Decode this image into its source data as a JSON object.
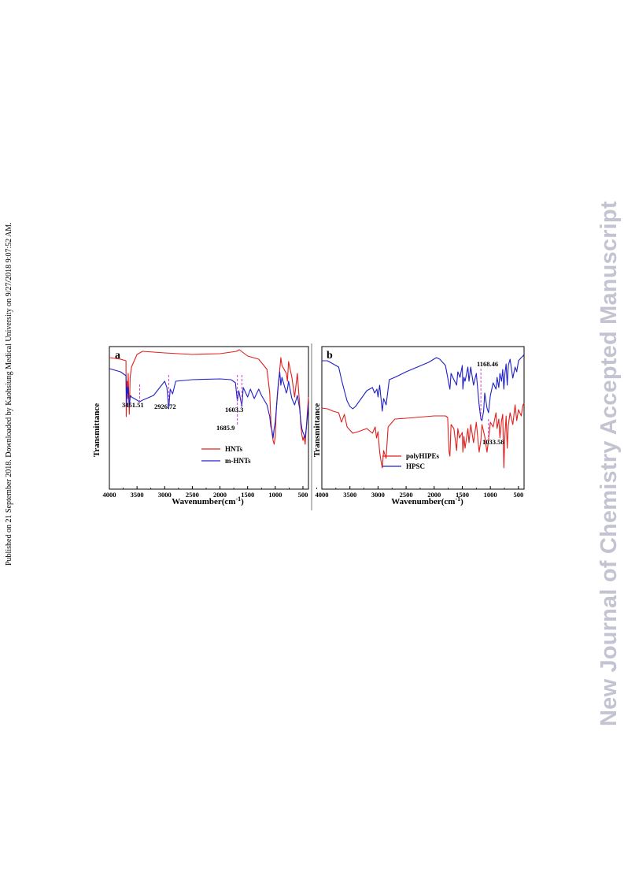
{
  "page": {
    "published_line": "Published on 21 September 2018. Downloaded by Kaohsiung Medical University on 9/27/2018 9:07:52 AM.",
    "watermark": "New Journal of Chemistry Accepted Manuscript",
    "watermark_color": "#c3c3d2"
  },
  "chart_data": [
    {
      "panel": "a",
      "type": "line",
      "xlabel": "Wavenumber(cm-1)",
      "ylabel": "Transmittance",
      "x_reversed": true,
      "xlim": [
        4000,
        400
      ],
      "xticks": [
        4000,
        3500,
        3000,
        2500,
        2000,
        1500,
        1000,
        500
      ],
      "legend_position": "bottom-center",
      "series": [
        {
          "name": "HNTs",
          "color": "#e0201e",
          "points": [
            [
              4000,
              10
            ],
            [
              3800,
              12
            ],
            [
              3700,
              14
            ],
            [
              3695,
              85
            ],
            [
              3680,
              40
            ],
            [
              3670,
              62
            ],
            [
              3660,
              30
            ],
            [
              3640,
              82
            ],
            [
              3625,
              35
            ],
            [
              3600,
              22
            ],
            [
              3500,
              6
            ],
            [
              3400,
              2
            ],
            [
              3000,
              4
            ],
            [
              2500,
              6
            ],
            [
              2000,
              5
            ],
            [
              1700,
              2
            ],
            [
              1650,
              0
            ],
            [
              1500,
              8
            ],
            [
              1300,
              12
            ],
            [
              1150,
              25
            ],
            [
              1100,
              55
            ],
            [
              1080,
              90
            ],
            [
              1060,
              105
            ],
            [
              1040,
              115
            ],
            [
              1020,
              120
            ],
            [
              1000,
              110
            ],
            [
              980,
              75
            ],
            [
              950,
              50
            ],
            [
              920,
              25
            ],
            [
              910,
              18
            ],
            [
              900,
              10
            ],
            [
              880,
              20
            ],
            [
              800,
              30
            ],
            [
              780,
              40
            ],
            [
              760,
              15
            ],
            [
              700,
              35
            ],
            [
              650,
              60
            ],
            [
              600,
              30
            ],
            [
              560,
              70
            ],
            [
              540,
              95
            ],
            [
              520,
              108
            ],
            [
              500,
              115
            ],
            [
              480,
              110
            ],
            [
              460,
              120
            ],
            [
              440,
              100
            ],
            [
              420,
              80
            ],
            [
              400,
              60
            ]
          ]
        },
        {
          "name": "m-HNTs",
          "color": "#2020c8",
          "points": [
            [
              4000,
              24
            ],
            [
              3800,
              28
            ],
            [
              3700,
              33
            ],
            [
              3690,
              70
            ],
            [
              3680,
              48
            ],
            [
              3670,
              55
            ],
            [
              3660,
              47
            ],
            [
              3640,
              72
            ],
            [
              3620,
              58
            ],
            [
              3600,
              60
            ],
            [
              3500,
              64
            ],
            [
              3451.51,
              66
            ],
            [
              3400,
              64
            ],
            [
              3200,
              58
            ],
            [
              3000,
              40
            ],
            [
              2960,
              48
            ],
            [
              2926.72,
              75
            ],
            [
              2900,
              50
            ],
            [
              2856,
              56
            ],
            [
              2800,
              40
            ],
            [
              2500,
              38
            ],
            [
              2000,
              37
            ],
            [
              1800,
              38
            ],
            [
              1720,
              42
            ],
            [
              1685.9,
              65
            ],
            [
              1660,
              52
            ],
            [
              1603.3,
              72
            ],
            [
              1580,
              48
            ],
            [
              1500,
              60
            ],
            [
              1450,
              50
            ],
            [
              1380,
              62
            ],
            [
              1300,
              50
            ],
            [
              1250,
              58
            ],
            [
              1150,
              70
            ],
            [
              1100,
              85
            ],
            [
              1080,
              98
            ],
            [
              1060,
              102
            ],
            [
              1040,
              112
            ],
            [
              1020,
              100
            ],
            [
              1000,
              92
            ],
            [
              980,
              75
            ],
            [
              960,
              55
            ],
            [
              940,
              40
            ],
            [
              920,
              28
            ],
            [
              900,
              45
            ],
            [
              880,
              35
            ],
            [
              800,
              55
            ],
            [
              780,
              50
            ],
            [
              760,
              40
            ],
            [
              700,
              62
            ],
            [
              650,
              70
            ],
            [
              600,
              58
            ],
            [
              560,
              75
            ],
            [
              540,
              90
            ],
            [
              520,
              100
            ],
            [
              500,
              105
            ],
            [
              480,
              108
            ],
            [
              460,
              112
            ],
            [
              440,
              100
            ],
            [
              420,
              85
            ],
            [
              400,
              70
            ]
          ]
        }
      ],
      "annotations": [
        {
          "x": 3451.51,
          "label": "3451.51"
        },
        {
          "x": 2926.72,
          "label": "2926.72"
        },
        {
          "x": 1685.9,
          "label": "1685.9"
        },
        {
          "x": 1603.3,
          "label": "1603.3"
        }
      ]
    },
    {
      "panel": "b",
      "type": "line",
      "xlabel": "Wavenumber(cm-1)",
      "ylabel": "Transmittance",
      "x_reversed": true,
      "xlim": [
        4000,
        400
      ],
      "xticks": [
        4000,
        3500,
        3000,
        2500,
        2000,
        1500,
        1000,
        500
      ],
      "legend_position": "bottom-center",
      "series": [
        {
          "name": "polyHIPEs",
          "color": "#e0201e",
          "points": [
            [
              4000,
              74
            ],
            [
              3900,
              75
            ],
            [
              3800,
              78
            ],
            [
              3700,
              80
            ],
            [
              3650,
              92
            ],
            [
              3600,
              82
            ],
            [
              3550,
              98
            ],
            [
              3450,
              106
            ],
            [
              3350,
              104
            ],
            [
              3200,
              100
            ],
            [
              3100,
              106
            ],
            [
              3050,
              98
            ],
            [
              3026,
              112
            ],
            [
              3000,
              104
            ],
            [
              2970,
              130
            ],
            [
              2950,
              140
            ],
            [
              2924,
              150
            ],
            [
              2900,
              128
            ],
            [
              2855,
              138
            ],
            [
              2820,
              98
            ],
            [
              2700,
              88
            ],
            [
              2500,
              87
            ],
            [
              2000,
              84
            ],
            [
              1800,
              84
            ],
            [
              1760,
              86
            ],
            [
              1735,
              130
            ],
            [
              1720,
              135
            ],
            [
              1700,
              95
            ],
            [
              1650,
              100
            ],
            [
              1600,
              128
            ],
            [
              1580,
              100
            ],
            [
              1550,
              112
            ],
            [
              1500,
              105
            ],
            [
              1490,
              130
            ],
            [
              1470,
              110
            ],
            [
              1450,
              125
            ],
            [
              1400,
              100
            ],
            [
              1380,
              118
            ],
            [
              1350,
              95
            ],
            [
              1300,
              118
            ],
            [
              1250,
              92
            ],
            [
              1200,
              130
            ],
            [
              1168.46,
              115
            ],
            [
              1150,
              95
            ],
            [
              1100,
              110
            ],
            [
              1060,
              130
            ],
            [
              1033.58,
              115
            ],
            [
              1000,
              92
            ],
            [
              950,
              98
            ],
            [
              900,
              80
            ],
            [
              880,
              100
            ],
            [
              850,
              88
            ],
            [
              830,
              112
            ],
            [
              800,
              90
            ],
            [
              780,
              82
            ],
            [
              760,
              150
            ],
            [
              740,
              108
            ],
            [
              720,
              84
            ],
            [
              700,
              125
            ],
            [
              680,
              96
            ],
            [
              650,
              80
            ],
            [
              600,
              95
            ],
            [
              560,
              70
            ],
            [
              530,
              90
            ],
            [
              500,
              76
            ],
            [
              450,
              84
            ],
            [
              420,
              70
            ],
            [
              400,
              68
            ]
          ]
        },
        {
          "name": "HPSC",
          "color": "#2020c8",
          "points": [
            [
              4000,
              14
            ],
            [
              3900,
              14
            ],
            [
              3800,
              18
            ],
            [
              3700,
              22
            ],
            [
              3650,
              38
            ],
            [
              3600,
              52
            ],
            [
              3550,
              65
            ],
            [
              3500,
              72
            ],
            [
              3450,
              75
            ],
            [
              3400,
              72
            ],
            [
              3300,
              62
            ],
            [
              3200,
              52
            ],
            [
              3100,
              48
            ],
            [
              3060,
              55
            ],
            [
              3020,
              50
            ],
            [
              3000,
              60
            ],
            [
              2970,
              45
            ],
            [
              2924,
              78
            ],
            [
              2900,
              62
            ],
            [
              2855,
              70
            ],
            [
              2800,
              38
            ],
            [
              2700,
              35
            ],
            [
              2500,
              28
            ],
            [
              2300,
              22
            ],
            [
              2100,
              16
            ],
            [
              1960,
              10
            ],
            [
              1900,
              12
            ],
            [
              1800,
              20
            ],
            [
              1760,
              35
            ],
            [
              1735,
              45
            ],
            [
              1720,
              50
            ],
            [
              1700,
              30
            ],
            [
              1650,
              38
            ],
            [
              1600,
              45
            ],
            [
              1580,
              28
            ],
            [
              1540,
              35
            ],
            [
              1500,
              20
            ],
            [
              1490,
              50
            ],
            [
              1470,
              35
            ],
            [
              1450,
              40
            ],
            [
              1400,
              22
            ],
            [
              1380,
              40
            ],
            [
              1350,
              22
            ],
            [
              1300,
              45
            ],
            [
              1250,
              30
            ],
            [
              1200,
              70
            ],
            [
              1168.46,
              88
            ],
            [
              1150,
              90
            ],
            [
              1120,
              78
            ],
            [
              1100,
              55
            ],
            [
              1060,
              74
            ],
            [
              1033.58,
              80
            ],
            [
              1000,
              58
            ],
            [
              950,
              42
            ],
            [
              900,
              50
            ],
            [
              880,
              35
            ],
            [
              850,
              48
            ],
            [
              830,
              30
            ],
            [
              800,
              40
            ],
            [
              780,
              25
            ],
            [
              760,
              50
            ],
            [
              740,
              30
            ],
            [
              720,
              18
            ],
            [
              700,
              45
            ],
            [
              680,
              20
            ],
            [
              650,
              12
            ],
            [
              600,
              36
            ],
            [
              560,
              22
            ],
            [
              530,
              28
            ],
            [
              500,
              14
            ],
            [
              450,
              10
            ],
            [
              420,
              8
            ],
            [
              400,
              6
            ]
          ]
        }
      ],
      "annotations": [
        {
          "x": 1168.46,
          "label": "1168.46"
        },
        {
          "x": 1033.58,
          "label": "1033.58"
        }
      ]
    }
  ]
}
